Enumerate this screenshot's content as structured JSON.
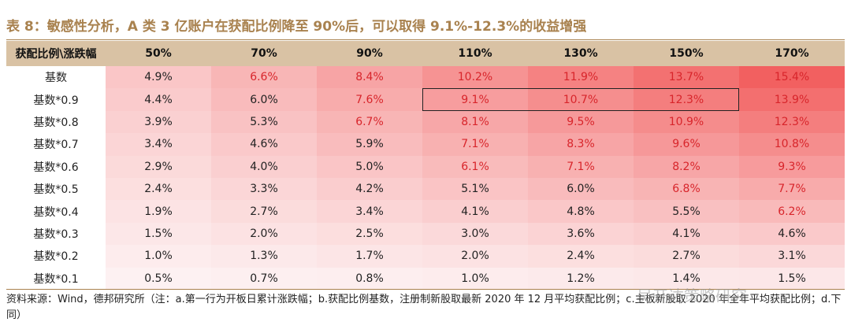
{
  "title": "表 8：敏感性分析，A 类 3 亿账户在获配比例降至 90%后，可以取得 9.1%-12.3%的收益增强",
  "table": {
    "corner_label": "获配比例\\涨跌幅",
    "columns": [
      "50%",
      "70%",
      "90%",
      "110%",
      "130%",
      "150%",
      "170%"
    ],
    "rows": [
      {
        "label": "基数",
        "values": [
          "4.9%",
          "6.6%",
          "8.4%",
          "10.2%",
          "11.9%",
          "13.7%",
          "15.4%"
        ]
      },
      {
        "label": "基数*0.9",
        "values": [
          "4.4%",
          "6.0%",
          "7.6%",
          "9.1%",
          "10.7%",
          "12.3%",
          "13.9%"
        ]
      },
      {
        "label": "基数*0.8",
        "values": [
          "3.9%",
          "5.3%",
          "6.7%",
          "8.1%",
          "9.5%",
          "10.9%",
          "12.3%"
        ]
      },
      {
        "label": "基数*0.7",
        "values": [
          "3.4%",
          "4.6%",
          "5.9%",
          "7.1%",
          "8.3%",
          "9.6%",
          "10.8%"
        ]
      },
      {
        "label": "基数*0.6",
        "values": [
          "2.9%",
          "4.0%",
          "5.0%",
          "6.1%",
          "7.1%",
          "8.2%",
          "9.3%"
        ]
      },
      {
        "label": "基数*0.5",
        "values": [
          "2.4%",
          "3.3%",
          "4.2%",
          "5.1%",
          "6.0%",
          "6.8%",
          "7.7%"
        ]
      },
      {
        "label": "基数*0.4",
        "values": [
          "1.9%",
          "2.7%",
          "3.4%",
          "4.1%",
          "4.8%",
          "5.5%",
          "6.2%"
        ]
      },
      {
        "label": "基数*0.3",
        "values": [
          "1.5%",
          "2.0%",
          "2.5%",
          "3.0%",
          "3.6%",
          "4.1%",
          "4.6%"
        ]
      },
      {
        "label": "基数*0.2",
        "values": [
          "1.0%",
          "1.3%",
          "1.7%",
          "2.0%",
          "2.4%",
          "2.7%",
          "3.1%"
        ]
      },
      {
        "label": "基数*0.1",
        "values": [
          "0.5%",
          "0.7%",
          "0.8%",
          "1.0%",
          "1.2%",
          "1.4%",
          "1.5%"
        ]
      }
    ],
    "highlight": {
      "row": 1,
      "from_col": 3,
      "to_col": 5
    },
    "red_text_threshold": 6.1,
    "colors": {
      "accent": "#a9824f",
      "header_bg": "#d9c2a4",
      "heat_low": "#fdf1f2",
      "heat_high": "#f26060",
      "red_text": "#d8252b"
    }
  },
  "source": "资料来源：Wind，德邦研究所（注：a.第一行为开板日累计涨跌幅；b.获配比例基数，注册制新股取最新 2020 年 12 月平均获配比例；c.主板新股取 2020 年全年平均获配比例；d.下同）",
  "watermark": "吴开达策略研究"
}
